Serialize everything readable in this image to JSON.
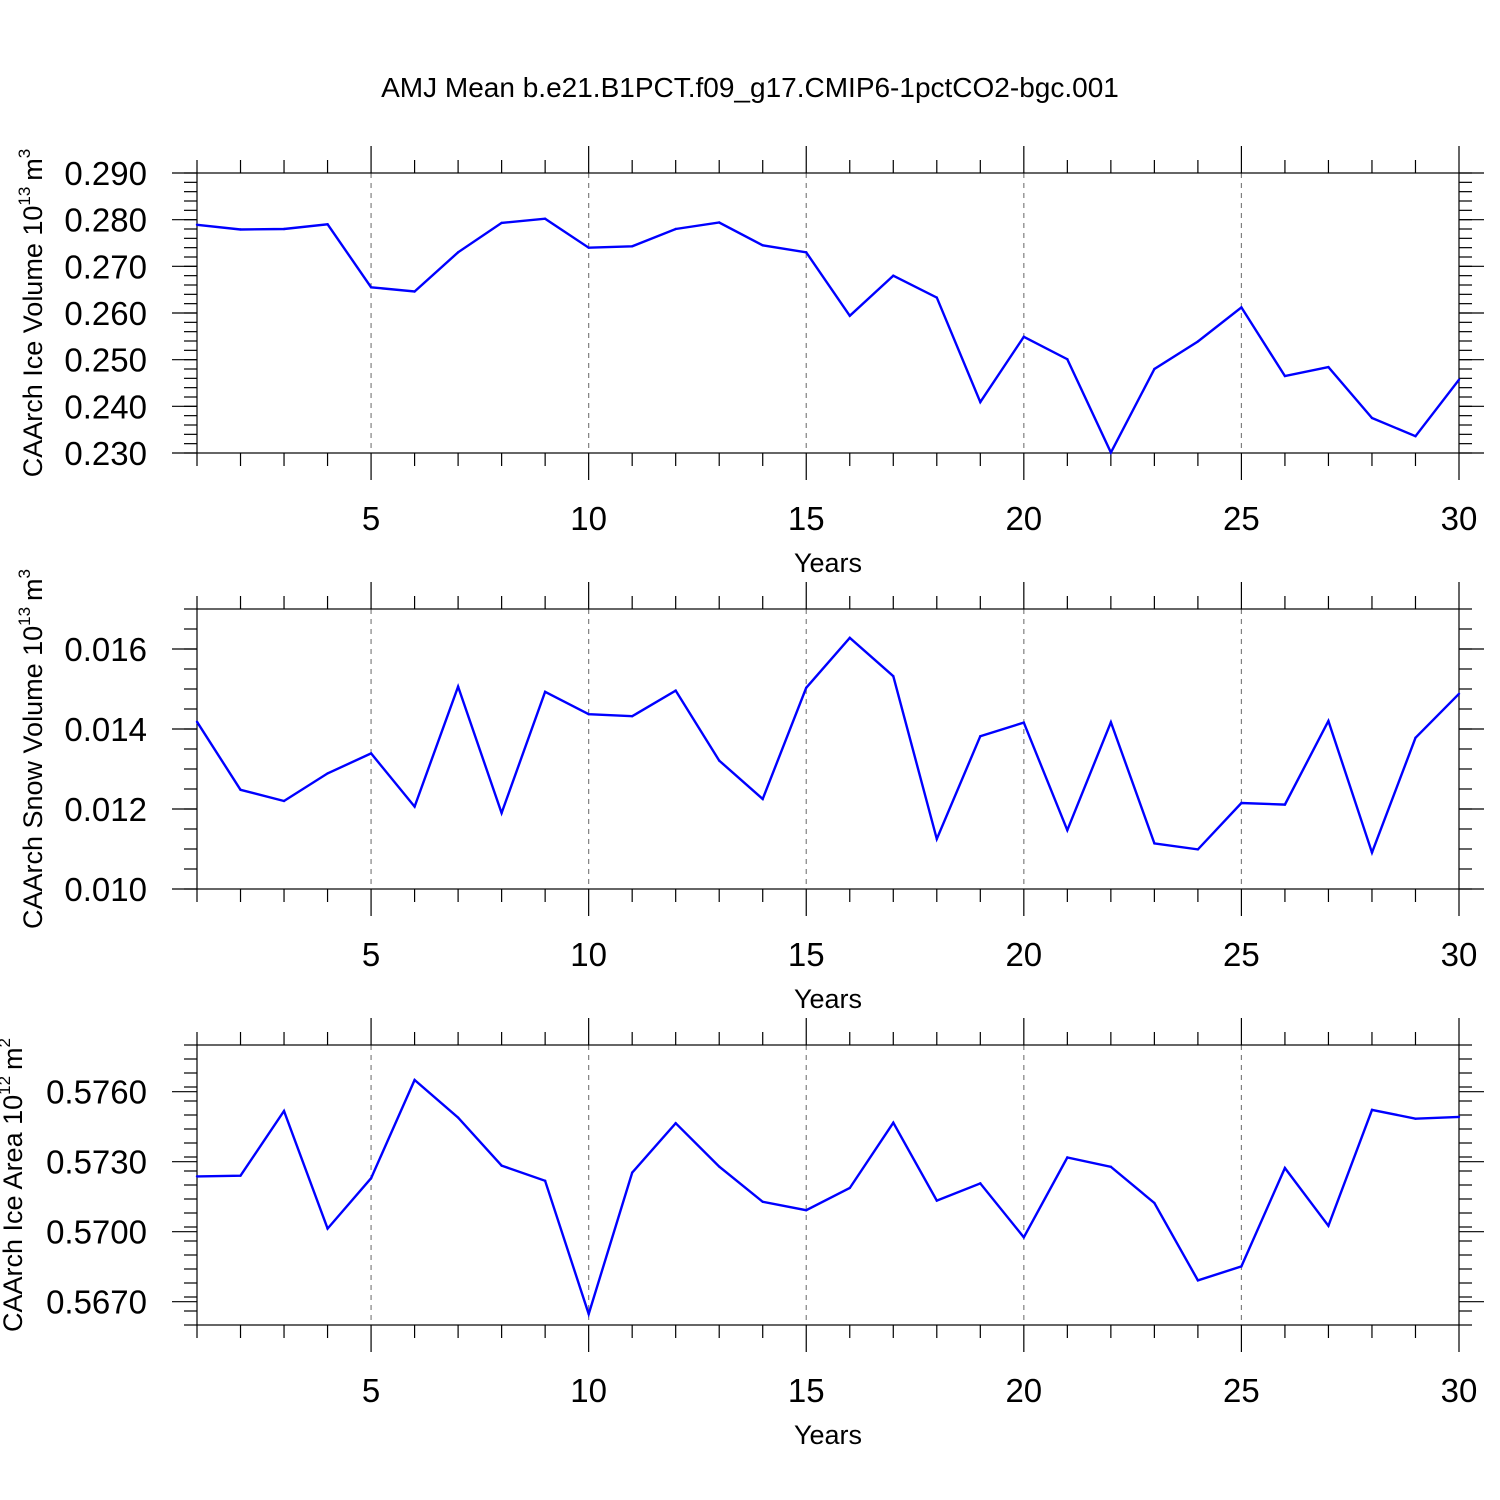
{
  "title": "AMJ Mean b.e21.B1PCT.f09_g17.CMIP6-1pctCO2-bgc.001",
  "colors": {
    "line": "#0000ff",
    "grid": "#808080",
    "axis": "#000000"
  },
  "chart_data": [
    {
      "type": "line",
      "xlabel": "Years",
      "ylabel_main": "CAArch Ice Volume 10",
      "ylabel_exp": "13",
      "ylabel_unit": "m",
      "ylabel_unit_exp": "3",
      "xlim": [
        1,
        30
      ],
      "ylim": [
        0.23,
        0.29
      ],
      "xticks": [
        5,
        10,
        15,
        20,
        25,
        30
      ],
      "yticks": [
        "0.230",
        "0.240",
        "0.250",
        "0.260",
        "0.270",
        "0.280",
        "0.290"
      ],
      "ytick_values": [
        0.23,
        0.24,
        0.25,
        0.26,
        0.27,
        0.28,
        0.29
      ],
      "yminor_step": 0.002,
      "grid_x": true,
      "x": [
        1,
        2,
        3,
        4,
        5,
        6,
        7,
        8,
        9,
        10,
        11,
        12,
        13,
        14,
        15,
        16,
        17,
        18,
        19,
        20,
        21,
        22,
        23,
        24,
        25,
        26,
        27,
        28,
        29,
        30
      ],
      "values": [
        0.2789,
        0.2779,
        0.278,
        0.279,
        0.2655,
        0.2646,
        0.273,
        0.2793,
        0.2802,
        0.274,
        0.2743,
        0.278,
        0.2794,
        0.2745,
        0.273,
        0.2594,
        0.268,
        0.2633,
        0.2409,
        0.2549,
        0.2501,
        0.2301,
        0.248,
        0.2539,
        0.2612,
        0.2465,
        0.2484,
        0.2375,
        0.2336,
        0.2457
      ]
    },
    {
      "type": "line",
      "xlabel": "Years",
      "ylabel_main": "CAArch Snow Volume 10",
      "ylabel_exp": "13",
      "ylabel_unit": "m",
      "ylabel_unit_exp": "3",
      "xlim": [
        1,
        30
      ],
      "ylim": [
        0.01,
        0.017
      ],
      "xticks": [
        5,
        10,
        15,
        20,
        25,
        30
      ],
      "yticks": [
        "0.010",
        "0.012",
        "0.014",
        "0.016"
      ],
      "ytick_values": [
        0.01,
        0.012,
        0.014,
        0.016
      ],
      "yminor_step": 0.0005,
      "grid_x": true,
      "x": [
        1,
        2,
        3,
        4,
        5,
        6,
        7,
        8,
        9,
        10,
        11,
        12,
        13,
        14,
        15,
        16,
        17,
        18,
        19,
        20,
        21,
        22,
        23,
        24,
        25,
        26,
        27,
        28,
        29,
        30
      ],
      "values": [
        0.01418,
        0.01248,
        0.0122,
        0.01289,
        0.01339,
        0.01206,
        0.01506,
        0.0119,
        0.01493,
        0.01437,
        0.01432,
        0.01496,
        0.01321,
        0.01225,
        0.01503,
        0.01628,
        0.01532,
        0.01125,
        0.01382,
        0.01416,
        0.01147,
        0.01417,
        0.01114,
        0.01099,
        0.01215,
        0.01211,
        0.0142,
        0.01091,
        0.01378,
        0.01488
      ]
    },
    {
      "type": "line",
      "xlabel": "Years",
      "ylabel_main": "CAArch Ice Area 10",
      "ylabel_exp": "12",
      "ylabel_unit": "m",
      "ylabel_unit_exp": "2",
      "xlim": [
        1,
        30
      ],
      "ylim": [
        0.566,
        0.578
      ],
      "xticks": [
        5,
        10,
        15,
        20,
        25,
        30
      ],
      "yticks": [
        "0.5670",
        "0.5700",
        "0.5730",
        "0.5760"
      ],
      "ytick_values": [
        0.567,
        0.57,
        0.573,
        0.576
      ],
      "yminor_step": 0.0006,
      "grid_x": true,
      "x": [
        1,
        2,
        3,
        4,
        5,
        6,
        7,
        8,
        9,
        10,
        11,
        12,
        13,
        14,
        15,
        16,
        17,
        18,
        19,
        20,
        21,
        22,
        23,
        24,
        25,
        26,
        27,
        28,
        29,
        30
      ],
      "values": [
        0.57237,
        0.5724,
        0.57517,
        0.57013,
        0.57229,
        0.5765,
        0.57489,
        0.57283,
        0.57218,
        0.56647,
        0.57253,
        0.57465,
        0.57279,
        0.57128,
        0.57092,
        0.57187,
        0.57467,
        0.57133,
        0.57207,
        0.56976,
        0.57318,
        0.57278,
        0.57123,
        0.56791,
        0.56851,
        0.57273,
        0.57025,
        0.57522,
        0.57484,
        0.57492
      ]
    }
  ]
}
